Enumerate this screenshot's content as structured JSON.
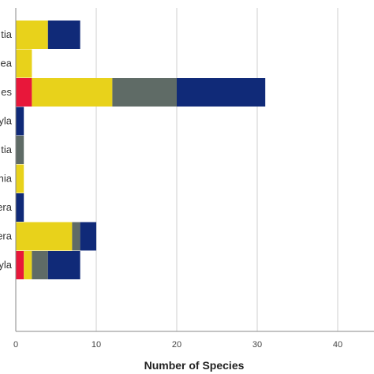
{
  "chart_data": {
    "type": "bar",
    "orientation": "horizontal",
    "stacked": true,
    "title": "",
    "xlabel": "Number of Species",
    "ylabel": "",
    "xlim": [
      0,
      44
    ],
    "xticks": [
      "0",
      "10",
      "20",
      "30",
      "40"
    ],
    "grid": true,
    "categories": [
      "tia",
      "ea",
      "es",
      "yla",
      "tia",
      "nia",
      "era",
      "era",
      "yla"
    ],
    "series": [
      {
        "color": "#e8173a",
        "values": [
          0,
          0,
          2,
          0,
          0,
          0,
          0,
          0,
          1
        ]
      },
      {
        "color": "#e8d21b",
        "values": [
          4,
          2,
          10,
          0,
          0,
          1,
          0,
          7,
          1
        ]
      },
      {
        "color": "#5f6b66",
        "values": [
          0,
          0,
          8,
          0,
          1,
          0,
          0,
          1,
          2
        ]
      },
      {
        "color": "#102a78",
        "values": [
          4,
          0,
          11,
          1,
          0,
          0,
          1,
          2,
          4
        ]
      }
    ]
  }
}
